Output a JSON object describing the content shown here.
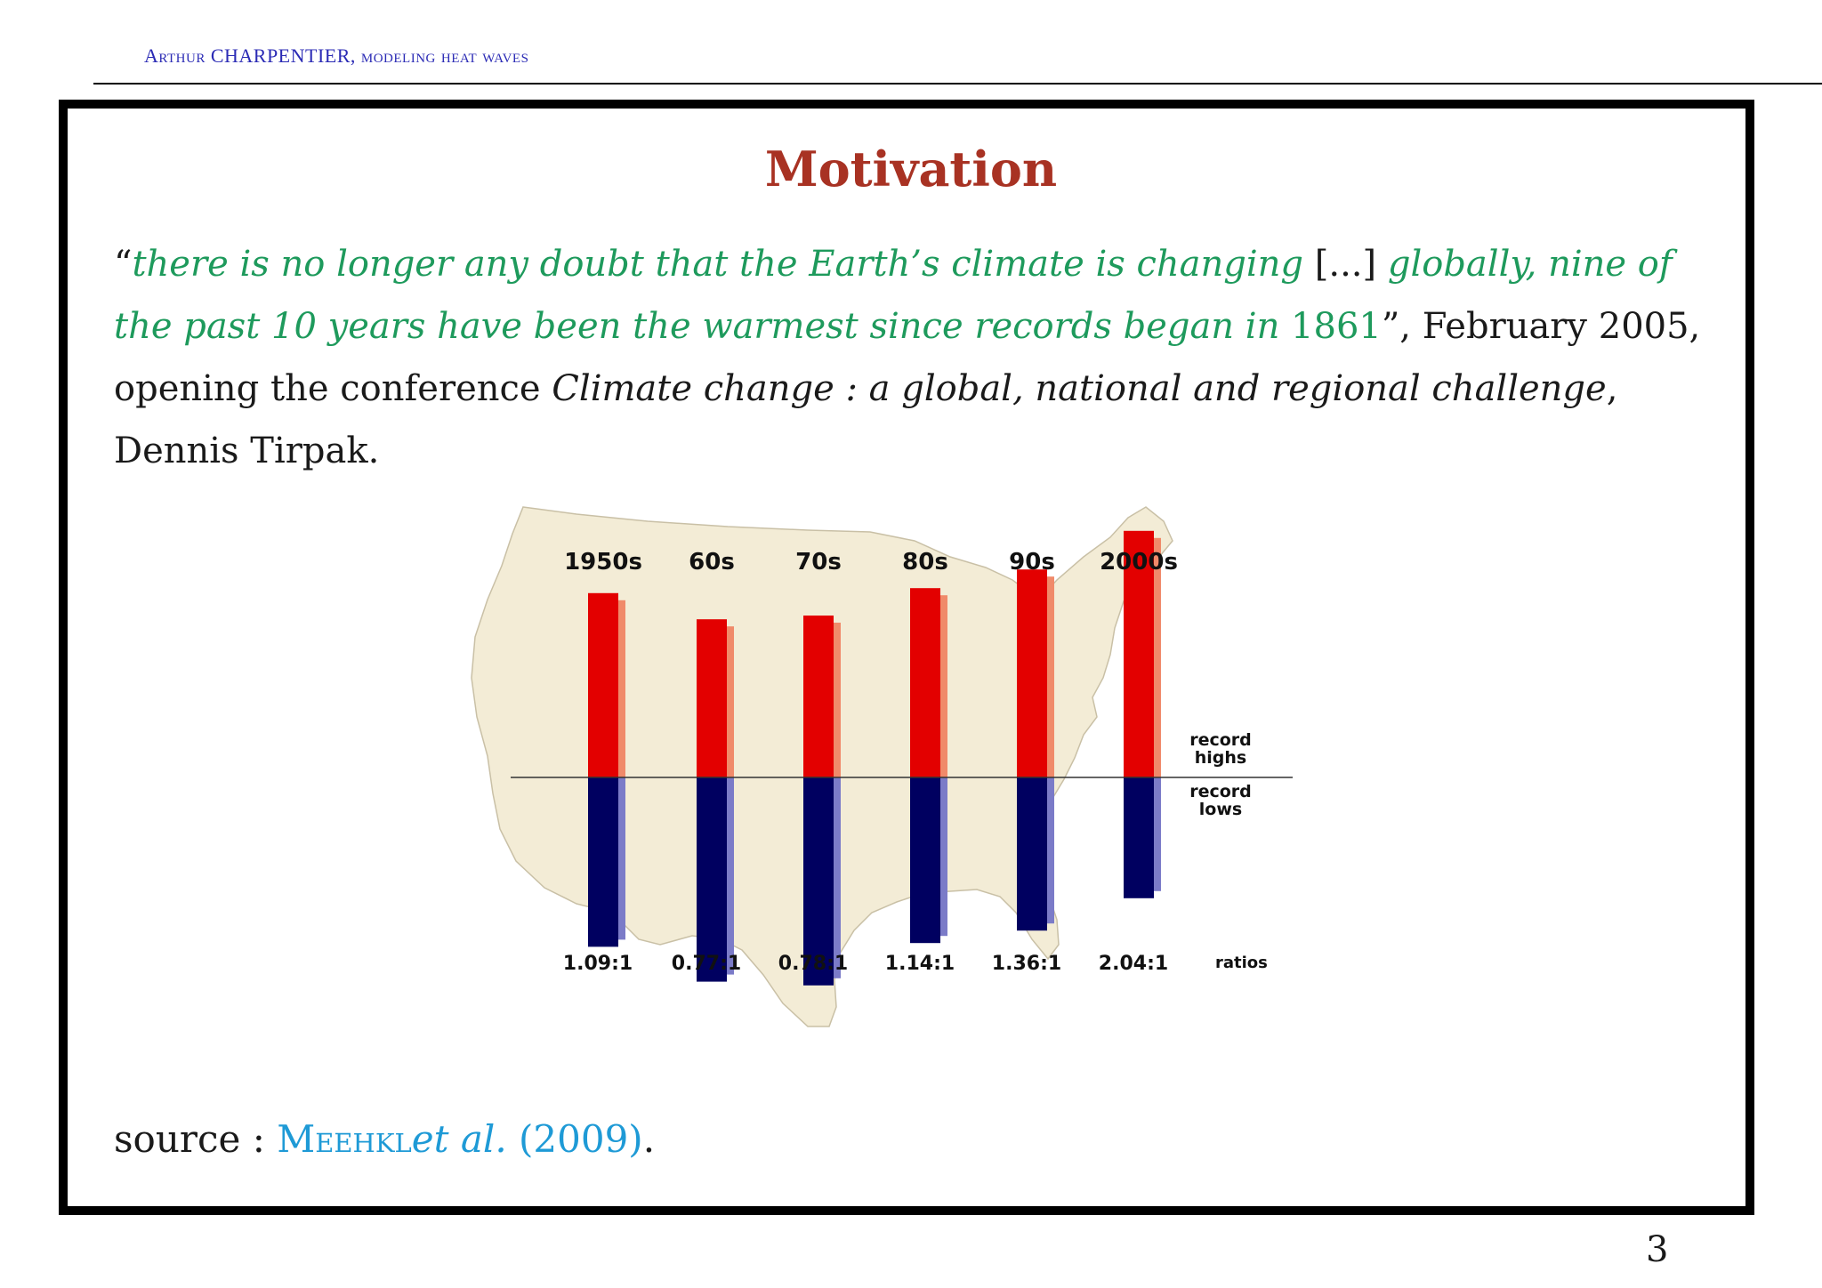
{
  "header": {
    "author": "Arthur CHARPENTIER",
    "subject": "modeling heat waves"
  },
  "slide": {
    "title": "Motivation",
    "quote_open": "“",
    "quote_part1": "there is no longer any doubt that the Earth’s climate is changing",
    "quote_ellipsis": " [...] ",
    "quote_part2": "globally, nine of the past 10 years have been the warmest since records began in ",
    "quote_year": "1861",
    "quote_close": "”, ",
    "context_prefix": "February 2005, opening the conference ",
    "conference_title": "Climate change : a global, national and regional challenge",
    "speaker": ", Dennis Tirpak.",
    "source_label": "source : ",
    "source_author": "Meehkl",
    "source_etal": "et al.",
    "source_year": " (2009)",
    "source_end": ".",
    "page_number": "3"
  },
  "colors": {
    "title": "#a83223",
    "quote": "#1e9a5c",
    "highs": "#e30000",
    "lows": "#000060",
    "map": "#f3ecd6",
    "citation": "#1e9ad6"
  },
  "chart_data": {
    "type": "bar",
    "categories": [
      "1950s",
      "60s",
      "70s",
      "80s",
      "90s",
      "2000s"
    ],
    "series": [
      {
        "name": "record highs",
        "values": [
          1.48,
          1.27,
          1.3,
          1.52,
          1.67,
          1.98
        ]
      },
      {
        "name": "record lows",
        "values": [
          1.36,
          1.64,
          1.67,
          1.33,
          1.23,
          0.97
        ]
      }
    ],
    "ratio_labels": [
      "1.09:1",
      "0.77:1",
      "0.78:1",
      "1.14:1",
      "1.36:1",
      "2.04:1"
    ],
    "ratios_label": "ratios",
    "highs_label": [
      "record",
      "highs"
    ],
    "lows_label": [
      "record",
      "lows"
    ]
  }
}
